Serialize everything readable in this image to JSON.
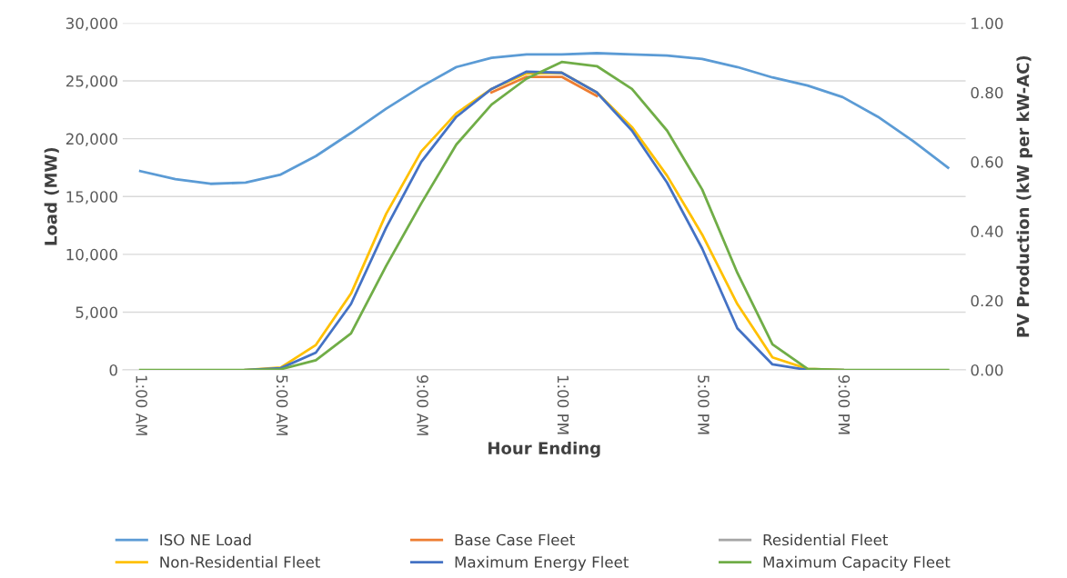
{
  "chart_data": {
    "type": "line",
    "xlabel": "Hour Ending",
    "ylabel": "Load (MW)",
    "y2label": "PV Production (kW per kW-AC)",
    "categories": [
      "1:00 AM",
      null,
      null,
      null,
      "5:00 AM",
      null,
      null,
      null,
      "9:00 AM",
      null,
      null,
      null,
      "1:00 PM",
      null,
      null,
      null,
      "5:00 PM",
      null,
      null,
      null,
      "9:00 PM",
      null,
      null,
      null
    ],
    "ylim": [
      0,
      30000
    ],
    "yticks": [
      {
        "value": 0,
        "label": "0"
      },
      {
        "value": 5000,
        "label": "5,000"
      },
      {
        "value": 10000,
        "label": "10,000"
      },
      {
        "value": 15000,
        "label": "15,000"
      },
      {
        "value": 20000,
        "label": "20,000"
      },
      {
        "value": 25000,
        "label": "25,000"
      },
      {
        "value": 30000,
        "label": "30,000"
      }
    ],
    "y2lim": [
      0,
      1
    ],
    "y2ticks": [
      {
        "value": 0,
        "label": "0.00"
      },
      {
        "value": 0.2,
        "label": "0.20"
      },
      {
        "value": 0.4,
        "label": "0.40"
      },
      {
        "value": 0.6,
        "label": "0.60"
      },
      {
        "value": 0.8,
        "label": "0.80"
      },
      {
        "value": 1,
        "label": "1.00"
      }
    ],
    "grid": "y",
    "legend": "bottom",
    "marker": "none",
    "line_style": "solid",
    "series": [
      {
        "name": "ISO NE Load",
        "color": "#5b9bd5",
        "values": [
          17200,
          16500,
          16100,
          16200,
          16900,
          18500,
          20500,
          22600,
          24500,
          26200,
          27000,
          27300,
          27300,
          27400,
          27300,
          27200,
          26900,
          26200,
          25300,
          24600,
          23600,
          21900,
          19800,
          17500
        ]
      },
      {
        "name": "Base Case Fleet",
        "color": "#ed7d31",
        "axis": "y2",
        "values": [
          null,
          null,
          null,
          null,
          null,
          null,
          null,
          null,
          null,
          null,
          0.8,
          0.845,
          0.845,
          0.79,
          null,
          null,
          null,
          null,
          null,
          null,
          null,
          null,
          null,
          null
        ]
      },
      {
        "name": "Residential Fleet",
        "color": "#a5a5a5",
        "axis": "y2",
        "values": [
          null,
          null,
          null,
          null,
          null,
          null,
          null,
          null,
          null,
          null,
          null,
          null,
          null,
          null,
          null,
          null,
          null,
          null,
          null,
          null,
          null,
          null,
          null,
          null
        ]
      },
      {
        "name": "Non-Residential Fleet",
        "color": "#ffc000",
        "axis": "y2",
        "values": [
          null,
          null,
          null,
          0,
          0.007,
          0.072,
          0.22,
          0.45,
          0.63,
          0.74,
          0.81,
          0.855,
          0.857,
          0.8,
          0.7,
          0.56,
          0.39,
          0.19,
          0.036,
          0.003,
          0,
          null,
          null,
          null
        ]
      },
      {
        "name": "Maximum Energy Fleet",
        "color": "#4472c4",
        "axis": "y2",
        "values": [
          null,
          null,
          null,
          0,
          0.005,
          0.05,
          0.19,
          0.41,
          0.6,
          0.73,
          0.81,
          0.86,
          0.857,
          0.8,
          0.69,
          0.54,
          0.35,
          0.12,
          0.016,
          0,
          0,
          null,
          null,
          null
        ]
      },
      {
        "name": "Maximum Capacity Fleet",
        "color": "#70ad47",
        "axis": "y2",
        "values": [
          0,
          0,
          0,
          0,
          0.002,
          0.028,
          0.105,
          0.3,
          0.48,
          0.65,
          0.765,
          0.84,
          0.888,
          0.876,
          0.81,
          0.69,
          0.52,
          0.28,
          0.074,
          0.003,
          0,
          0,
          0,
          0
        ]
      }
    ]
  }
}
